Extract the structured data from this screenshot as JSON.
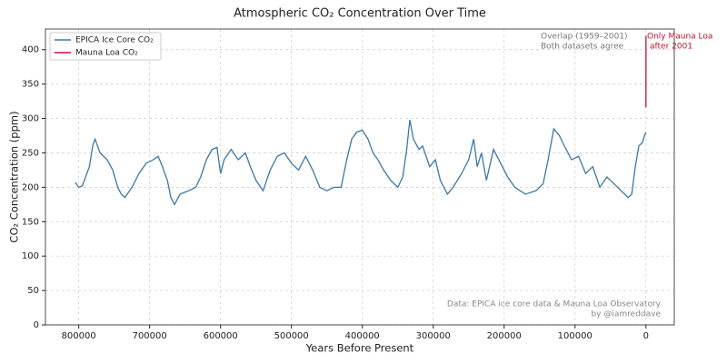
{
  "chart_data": {
    "type": "line",
    "title": "Atmospheric CO₂ Concentration Over Time",
    "x_label": "Years Before Present",
    "y_label": "CO₂ Concentration (ppm)",
    "xlim": [
      847000,
      -40000
    ],
    "ylim": [
      0,
      430
    ],
    "xticks": [
      800000,
      700000,
      600000,
      500000,
      400000,
      300000,
      200000,
      100000,
      0
    ],
    "yticks": [
      0,
      50,
      100,
      150,
      200,
      250,
      300,
      350,
      400
    ],
    "grid": true,
    "legend": "upper left",
    "series": [
      {
        "name": "EPICA Ice Core CO₂",
        "color": "#3a78a8",
        "x": [
          805000,
          800000,
          795000,
          785000,
          780000,
          777000,
          770000,
          760000,
          752000,
          745000,
          740000,
          735000,
          725000,
          715000,
          705000,
          695000,
          688000,
          682000,
          675000,
          670000,
          665000,
          657000,
          645000,
          635000,
          628000,
          620000,
          612000,
          605000,
          600000,
          595000,
          585000,
          575000,
          565000,
          558000,
          550000,
          540000,
          530000,
          520000,
          510000,
          500000,
          490000,
          480000,
          470000,
          460000,
          450000,
          440000,
          430000,
          422000,
          415000,
          408000,
          400000,
          392000,
          385000,
          378000,
          370000,
          360000,
          350000,
          343000,
          338000,
          333000,
          328000,
          320000,
          315000,
          305000,
          297000,
          290000,
          280000,
          272000,
          260000,
          250000,
          243000,
          238000,
          232000,
          225000,
          215000,
          205000,
          195000,
          185000,
          170000,
          155000,
          145000,
          138000,
          130000,
          122000,
          115000,
          105000,
          95000,
          85000,
          75000,
          65000,
          55000,
          45000,
          35000,
          25000,
          20000,
          15000,
          10000,
          5000,
          2000,
          0
        ],
        "values": [
          207,
          200,
          202,
          230,
          262,
          270,
          250,
          240,
          225,
          200,
          190,
          185,
          200,
          220,
          235,
          240,
          245,
          230,
          210,
          185,
          175,
          190,
          195,
          200,
          215,
          240,
          255,
          258,
          220,
          240,
          255,
          240,
          250,
          230,
          210,
          195,
          225,
          245,
          250,
          235,
          225,
          245,
          225,
          200,
          195,
          200,
          200,
          240,
          270,
          280,
          283,
          270,
          250,
          240,
          225,
          210,
          200,
          215,
          250,
          298,
          270,
          255,
          260,
          230,
          240,
          210,
          190,
          200,
          220,
          240,
          270,
          230,
          250,
          210,
          255,
          235,
          215,
          200,
          190,
          195,
          205,
          240,
          285,
          275,
          260,
          240,
          245,
          220,
          230,
          200,
          215,
          205,
          195,
          185,
          190,
          230,
          260,
          265,
          275,
          280
        ]
      },
      {
        "name": "Mauna Loa CO₂",
        "color": "#c8102e",
        "x": [
          -9,
          -20,
          -30,
          -40,
          -51,
          -60,
          -73
        ],
        "values": [
          316,
          326,
          339,
          354,
          371,
          389,
          420
        ]
      }
    ],
    "annotations": {
      "overlap": [
        "Overlap (1959–2001)",
        "Both datasets agree"
      ],
      "mauna_loa": [
        "Only Mauna Loa",
        "after 2001"
      ],
      "source": [
        "Data: EPICA ice core data & Mauna Loa Observatory",
        "by @iamreddave"
      ]
    }
  }
}
